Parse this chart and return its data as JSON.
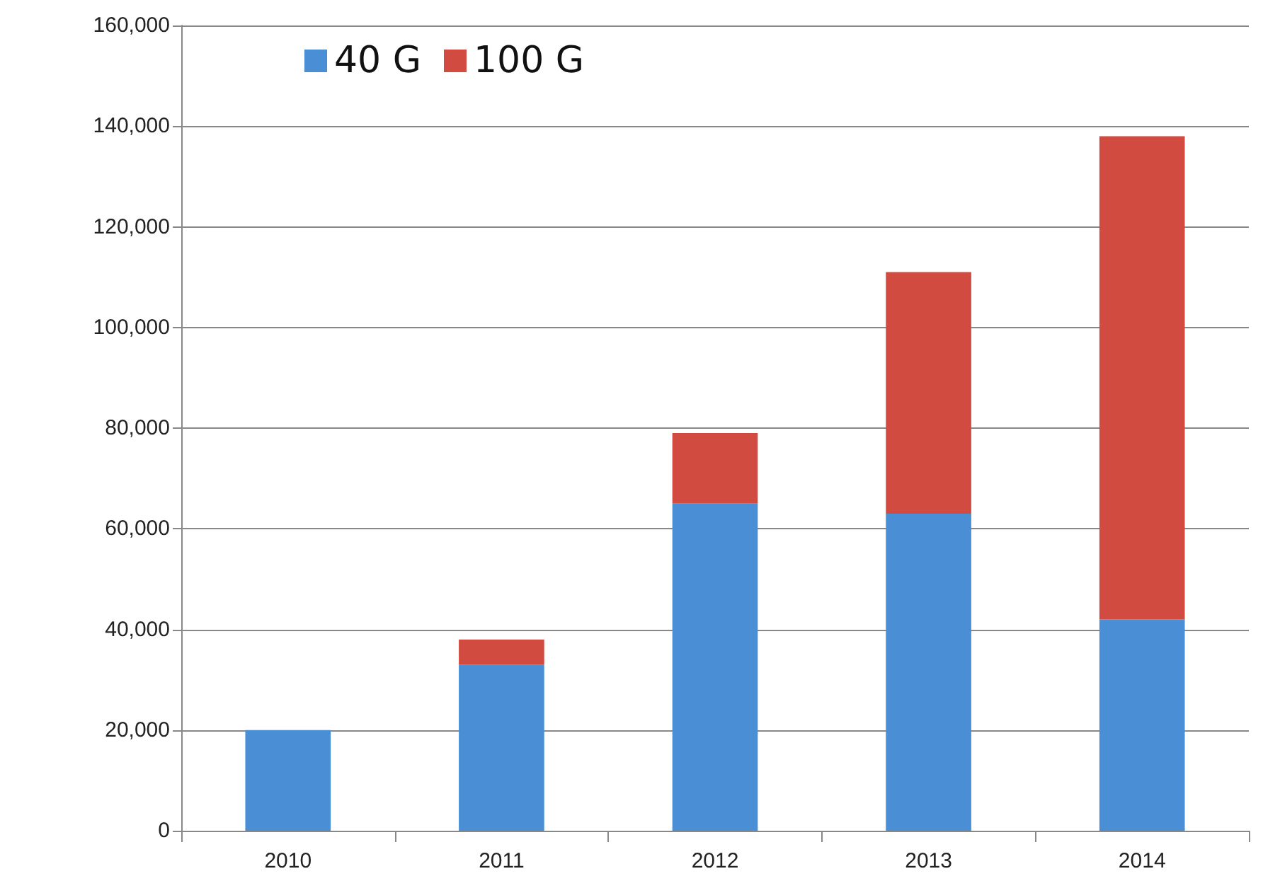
{
  "chart_data": {
    "type": "bar",
    "stacked": true,
    "categories": [
      "2010",
      "2011",
      "2012",
      "2013",
      "2014"
    ],
    "series": [
      {
        "name": "40 G",
        "color": "#4a8fd6",
        "values": [
          20000,
          33000,
          65000,
          63000,
          42000
        ]
      },
      {
        "name": "100 G",
        "color": "#d24b40",
        "values": [
          0,
          5000,
          14000,
          48000,
          96000
        ]
      }
    ],
    "ylim": [
      0,
      160000
    ],
    "yticks": [
      {
        "value": 0,
        "label": "0"
      },
      {
        "value": 20000,
        "label": "20,000"
      },
      {
        "value": 40000,
        "label": "40,000"
      },
      {
        "value": 60000,
        "label": "60,000"
      },
      {
        "value": 80000,
        "label": "80,000"
      },
      {
        "value": 100000,
        "label": "100,000"
      },
      {
        "value": 120000,
        "label": "120,000"
      },
      {
        "value": 140000,
        "label": "140,000"
      },
      {
        "value": 160000,
        "label": "160,000"
      }
    ],
    "grid": "y",
    "legend": "top left"
  }
}
